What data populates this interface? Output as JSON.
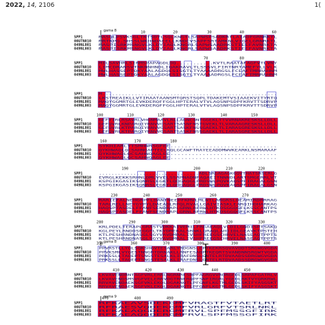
{
  "header": {
    "year": "2022,",
    "volume": "14,",
    "page": "2106",
    "right_mark": "1("
  },
  "sequence_names": [
    "SPP1",
    "00UTN010",
    "049NL001",
    "049NL003"
  ],
  "motif_labels": {
    "g1": "gama 8",
    "g2": "gama 8",
    "g3": "gama 9"
  },
  "blocks": [
    {
      "ruler": [
        {
          "n": "10",
          "col": 0.25
        },
        {
          "n": "20",
          "col": 0.43
        },
        {
          "n": "30",
          "col": 0.62
        },
        {
          "n": "40",
          "col": 0.8
        },
        {
          "n": "60",
          "col": 0.98
        }
      ],
      "motif": "g1",
      "red": [
        [
          0.02,
          0.07
        ],
        [
          0.1,
          0.16
        ],
        [
          0.19,
          0.27
        ],
        [
          0.3,
          0.34
        ],
        [
          0.36,
          0.42
        ],
        [
          0.46,
          0.5
        ],
        [
          0.55,
          0.63
        ],
        [
          0.66,
          0.72
        ],
        [
          0.74,
          0.8
        ],
        [
          0.82,
          0.92
        ],
        [
          0.94,
          0.98
        ]
      ],
      "blue": [
        [
          0.08,
          0.1
        ],
        [
          0.28,
          0.3
        ],
        [
          0.52,
          0.55
        ],
        [
          0.92,
          0.94
        ]
      ],
      "rows": [
        "MASQLPSVKSGLTKTSDYLSQLKNGTLSAPWSPSADKRTLAIADFGRNRKTL",
        "MRTKPQ.SHSSLWKHNDAEELLKNDCVSAPFSRTAMKNLVIGELGRNRKTL",
        "MASPISRKMSNGVLKLDYIAQLKNGRLSAPWSAADRKSTIEEFAVNRKTA",
        "MASPISRKMSNGVLKLDYIAQLKNGRLSAPWSAADRKSTIEEFAVNRKTA"
      ]
    },
    {
      "ruler": [
        {
          "n": "70",
          "col": 0.6
        },
        {
          "n": "80",
          "col": 0.8
        }
      ],
      "motif": "",
      "red": [
        [
          0.0,
          0.04
        ],
        [
          0.06,
          0.12
        ],
        [
          0.15,
          0.2
        ],
        [
          0.22,
          0.27
        ],
        [
          0.4,
          0.46
        ],
        [
          0.6,
          0.62
        ],
        [
          0.82,
          0.9
        ],
        [
          0.93,
          0.98
        ]
      ],
      "blue": [
        [
          0.12,
          0.15
        ],
        [
          0.28,
          0.34
        ],
        [
          0.48,
          0.52
        ],
        [
          0.75,
          0.8
        ]
      ],
      "rows": [
        "MILSAVHRLSIRMSPAPAGDLDQ...........KVTLRAATAFAGFVTLVNY",
        "LIMCDRANSVTNKNNHNDLIQAKRAVLTLSSSVLFIRTNRTAMEFYLLVLK",
        "MWLHASSEPTQKYAALAGDQESISGTLTYAAAADRGSLFCEAFTMRRAHNM",
        "MWLHASSEPTQKYAALAGDQESISGTLTYAAAADRGSLFCEAFTMRRAHNM"
      ]
    },
    {
      "ruler": [],
      "motif": "",
      "red": [
        [
          0.0,
          0.04
        ]
      ],
      "blue": [
        [
          0.04,
          0.07
        ],
        [
          0.94,
          0.99
        ]
      ],
      "rows": [
        "M......................................................",
        "LKSTREAIKLLVTIRAATAANSMTQRSTSQPLTDAKEMTVSIAAEKVITYRTQ",
        "MAQYGGMRTGLEVKDERQFFGGLHPTERALVTVLAQSNPSDPFKRVTTSDRVP",
        "MAQYGGMRTGLEVKDERQFFGGLHPTERALVTVLAQSNPSDPFKRVTTSDRVP"
      ]
    },
    {
      "ruler": [
        {
          "n": "100",
          "col": 0.01
        },
        {
          "n": "110",
          "col": 0.18
        },
        {
          "n": "120",
          "col": 0.35
        },
        {
          "n": "130",
          "col": 0.52
        },
        {
          "n": "140",
          "col": 0.7
        },
        {
          "n": "150",
          "col": 0.87
        }
      ],
      "motif": "",
      "red": [
        [
          0.0,
          0.03
        ],
        [
          0.06,
          0.09
        ],
        [
          0.12,
          0.2
        ],
        [
          0.28,
          0.33
        ],
        [
          0.36,
          0.43
        ],
        [
          0.48,
          0.54
        ],
        [
          0.57,
          1.0
        ]
      ],
      "blue": [
        [
          0.03,
          0.06
        ],
        [
          0.2,
          0.24
        ],
        [
          0.44,
          0.48
        ]
      ],
      "rows": [
        "GEFYIRLRSAVRLVHGNMAAVLRLLAGNCQNTGGEKLTTVVRNAKRESKSLLDLL",
        "GEFQVRLKNPARQIYRNVVGSARTSASNFNSTGVEKLTLVARAAGRESKSLLDLL",
        "GEFQVRLKTPARQIYRNVVGSARTSASKFNSSGAEKLTLIARASGRESKSLLDLL",
        "GEFQVRLKTPARQIYRNVVGSARTSASKFNSSGAEKLTLIARASGRESKSLLDLL"
      ]
    },
    {
      "ruler": [
        {
          "n": "160",
          "col": 0.03
        },
        {
          "n": "170",
          "col": 0.22
        },
        {
          "n": "180",
          "col": 0.42
        }
      ],
      "motif": "",
      "red": [
        [
          0.0,
          0.14
        ],
        [
          0.17,
          0.27
        ],
        [
          0.3,
          0.38
        ]
      ],
      "blue": [
        [
          0.14,
          0.17
        ],
        [
          0.27,
          0.3
        ],
        [
          0.38,
          0.4
        ]
      ],
      "rows": [
        "SYKHIARLYTSMHNRSGFEE..............................",
        "QYKHWAQLQCSAHNQAPTEELKQLGCAWFTRAYEEADDMWVKEARKLNSMARAAF",
        "QYKHWAQLQCSAHNQAGLEE..............................",
        "QYKHWAQLQCSAHNQAGLEE.............................."
      ]
    },
    {
      "ruler": [
        {
          "n": "190",
          "col": 0.15
        },
        {
          "n": "200",
          "col": 0.55
        },
        {
          "n": "210",
          "col": 0.73
        },
        {
          "n": "220",
          "col": 0.91
        }
      ],
      "motif": "",
      "red": [
        [
          0.26,
          0.32
        ],
        [
          0.38,
          0.44
        ],
        [
          0.47,
          0.54
        ],
        [
          0.56,
          0.62
        ],
        [
          0.65,
          0.73
        ],
        [
          0.76,
          0.8
        ],
        [
          0.82,
          0.9
        ],
        [
          0.92,
          0.98
        ]
      ],
      "blue": [
        [
          0.22,
          0.26
        ],
        [
          0.33,
          0.37
        ],
        [
          0.45,
          0.47
        ],
        [
          0.63,
          0.65
        ],
        [
          0.9,
          0.92
        ]
      ],
      "rows": [
        "................................ADLSRGAGAGKGQVTHATSRSERLG",
        "EVRGLKEKKSRHNLDMLVVELSSAPNADNFAQAEITNNNDLARTSMGERRLVT",
        "KSPGIKGASIKSQNRSLEGKTLQDGAQGLPRDSWLPQVKAQSPFIRAGALGSN",
        "KSPGIKGASIKSQNRSLEGKTLQDGAQGLPRDSWLPQVKAQSPFIRAGALGSN"
      ]
    },
    {
      "ruler": [
        {
          "n": "230",
          "col": 0.09
        },
        {
          "n": "240",
          "col": 0.27
        },
        {
          "n": "250",
          "col": 0.45
        },
        {
          "n": "260",
          "col": 0.64
        },
        {
          "n": "270",
          "col": 0.82
        }
      ],
      "motif": "",
      "red": [
        [
          0.0,
          0.07
        ],
        [
          0.1,
          0.16
        ],
        [
          0.19,
          0.25
        ],
        [
          0.27,
          0.33
        ],
        [
          0.38,
          0.4
        ],
        [
          0.44,
          0.54
        ],
        [
          0.6,
          0.66
        ],
        [
          0.68,
          0.78
        ],
        [
          0.86,
          0.92
        ]
      ],
      "blue": [
        [
          0.07,
          0.1
        ],
        [
          0.33,
          0.37
        ],
        [
          0.56,
          0.6
        ],
        [
          0.79,
          0.82
        ]
      ],
      "rows": [
        "RARIEFALNEHGRPFLDANTNEEPFKMVLMLNTLARGRSLDEAMIRDRRRAG",
        "TARLRELLNEYGYPYLDAEADLRPQLRVALLGAIVIASKLEARQIHDHARKAG",
        "HAQSPTASDELFFAWFSENDRAPLGRNLRFRWLHTKDSGGQGFLKSSCANTPS",
        "HAQSPTASDELFFAWFSENDRAPLGRNLRFRWLHTKDSGGQGFLKSSCANTPS"
      ]
    },
    {
      "ruler": [
        {
          "n": "280",
          "col": 0.01
        },
        {
          "n": "290",
          "col": 0.19
        },
        {
          "n": "300",
          "col": 0.37
        },
        {
          "n": "310",
          "col": 0.55
        },
        {
          "n": "320",
          "col": 0.73
        },
        {
          "n": "330",
          "col": 0.91
        }
      ],
      "motif": "",
      "red": [
        [
          0.24,
          0.3
        ],
        [
          0.36,
          0.42
        ],
        [
          0.44,
          0.5
        ],
        [
          0.53,
          0.59
        ],
        [
          0.63,
          0.69
        ],
        [
          0.72,
          0.82
        ],
        [
          0.86,
          0.9
        ]
      ],
      "blue": [
        [
          0.14,
          0.2
        ],
        [
          0.3,
          0.36
        ],
        [
          0.59,
          0.63
        ],
        [
          0.82,
          0.86
        ],
        [
          0.92,
          0.98
        ]
      ],
      "rows": [
        "KRLPDELTERAPLGRASTVDKKAIVEMILFRGAEAQLVLDILGQDISPTSAKQ",
        "KGLPEYLRNDDSEGGFLTKYDMEKALSRNKLQRAQLAHIIDLGEAYKTPSTEH",
        "KTLPESHRNDNASGLSGYVAVDMRALIVSHFREEGSCHRVELNASEAQTPPTS",
        "KTLPESHRNDNASGLSGYVAVDMRALIVSHFREEGSCHRVELNASEAQTPPTS"
      ]
    },
    {
      "ruler": [
        {
          "n": "350",
          "col": 0.01
        },
        {
          "n": "360",
          "col": 0.2
        },
        {
          "n": "370",
          "col": 0.38
        },
        {
          "n": "380",
          "col": 0.57
        },
        {
          "n": "390",
          "col": 0.76
        },
        {
          "n": "400",
          "col": 0.94
        }
      ],
      "motif": "g2",
      "red": [
        [
          0.12,
          0.18
        ],
        [
          0.21,
          0.26
        ],
        [
          0.3,
          0.38
        ],
        [
          0.4,
          0.46
        ],
        [
          0.55,
          0.58
        ],
        [
          0.6,
          1.0
        ]
      ],
      "blue": [
        [
          0.0,
          0.04
        ],
        [
          0.06,
          0.12
        ],
        [
          0.26,
          0.3
        ],
        [
          0.47,
          0.55
        ]
      ],
      "rows": [
        "PPVRSTLLYQLSQKSHGVTESARLYRDGNSLEPTKEKRSQVAVDDTSRGWGVGDA",
        "PPVKSMLVYQESTNNGRTDRNAKLLRNFESADPTKEQRTSVANDNNSRGWTVGDA",
        "PRKSSLLTAQEPTSNGSTESALKLIRAFDNSLGNTELRTDVAADSSDRGWGVGDA",
        "PRKSSLLTAQEPTSNGSTESALKLIRAFDNSLGNTELRTDVAADSSDRGWGVGDA"
      ]
    },
    {
      "ruler": [
        {
          "n": "410",
          "col": 0.1
        },
        {
          "n": "420",
          "col": 0.28
        },
        {
          "n": "430",
          "col": 0.46
        },
        {
          "n": "440",
          "col": 0.65
        },
        {
          "n": "450",
          "col": 0.83
        }
      ],
      "motif": "",
      "red": [
        [
          0.0,
          0.1
        ],
        [
          0.12,
          0.16
        ],
        [
          0.2,
          0.36
        ],
        [
          0.38,
          0.46
        ],
        [
          0.48,
          0.52
        ],
        [
          0.58,
          0.68
        ],
        [
          0.7,
          0.76
        ],
        [
          0.8,
          1.0
        ]
      ],
      "blue": [
        [
          0.1,
          0.12
        ],
        [
          0.36,
          0.38
        ],
        [
          0.53,
          0.58
        ],
        [
          0.77,
          0.8
        ]
      ],
      "rows": [
        "LKVAVENDRNTAGFVRLERRLNGRNRESHPFAGRGVVRDRGEDLSRPAFGATRLV",
        "LKVAVENDSMSVGFVELERRVDGTRNERQPFSNFIRGRLYGEDLRKTVYQRKRWL",
        "RRVAVENDAEKSGFVKLEKQLDGAKNQTLPFGNFLKGTMLGEDLSKIFYASGSKT",
        "RRVAVENDAEKSGFVKLEKQLDGAKNQTLPFGNFLKGTMLGEDLSKIFYASGSKT"
      ]
    },
    {
      "ruler": [
        {
          "n": "470",
          "col": 0.04
        },
        {
          "n": "480",
          "col": 0.22
        },
        {
          "n": "490",
          "col": 0.4
        }
      ],
      "motif": "g3",
      "red": [
        [
          0.0,
          0.1
        ],
        [
          0.13,
          0.28
        ],
        [
          0.31,
          0.4
        ],
        [
          0.42,
          0.47
        ]
      ],
      "blue": [
        [
          0.1,
          0.13
        ],
        [
          0.28,
          0.31
        ]
      ],
      "rows": [
        "RFKAEAVSDEKGMFVRAGTFVTAETLRT",
        "RFRAESVQDEKGMFVRLGRFVTSRLNKL",
        "RFKAEAQGDERGMFRVLSPFMSSGFIRK",
        "RFKAEAQGDERGMFRVLSPFMSSGFIRK"
      ]
    }
  ]
}
